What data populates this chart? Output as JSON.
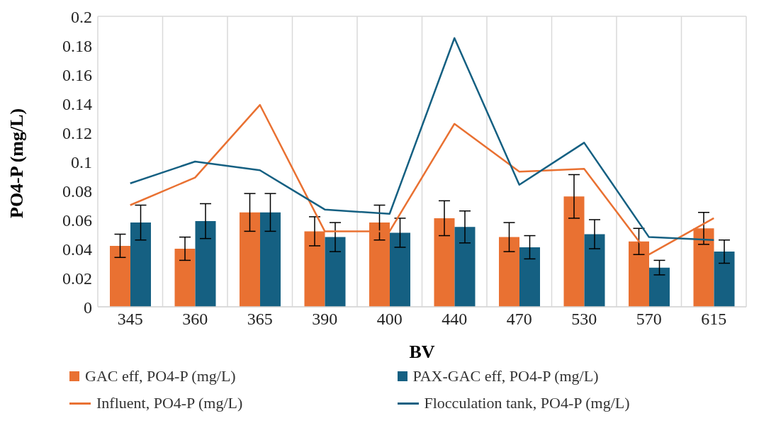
{
  "chart_data": {
    "type": "bar",
    "xlabel": "BV",
    "ylabel": "PO4-P (mg/L)",
    "categories": [
      "345",
      "360",
      "365",
      "390",
      "400",
      "440",
      "470",
      "530",
      "570",
      "615"
    ],
    "series": [
      {
        "name": "GAC eff, PO4-P (mg/L)",
        "color": "#e97132",
        "values": [
          0.042,
          0.04,
          0.065,
          0.052,
          0.058,
          0.061,
          0.048,
          0.076,
          0.045,
          0.054
        ],
        "errors": [
          0.008,
          0.008,
          0.013,
          0.01,
          0.012,
          0.012,
          0.01,
          0.015,
          0.009,
          0.011
        ]
      },
      {
        "name": "PAX-GAC eff, PO4-P (mg/L)",
        "color": "#156082",
        "values": [
          0.058,
          0.059,
          0.065,
          0.048,
          0.051,
          0.055,
          0.041,
          0.05,
          0.027,
          0.038
        ],
        "errors": [
          0.012,
          0.012,
          0.013,
          0.01,
          0.01,
          0.011,
          0.008,
          0.01,
          0.005,
          0.008
        ]
      },
      {
        "name": "Influent, PO4-P (mg/L)",
        "type": "line",
        "color": "#e97132",
        "values": [
          0.07,
          0.089,
          0.139,
          0.052,
          0.052,
          0.126,
          0.093,
          0.095,
          0.036,
          0.061
        ]
      },
      {
        "name": "Flocculation tank, PO4-P (mg/L)",
        "type": "line",
        "color": "#156082",
        "values": [
          0.085,
          0.1,
          0.094,
          0.067,
          0.064,
          0.185,
          0.084,
          0.113,
          0.048,
          0.046
        ]
      }
    ],
    "ylim": [
      0,
      0.2
    ],
    "yticks": [
      0,
      0.02,
      0.04,
      0.06,
      0.08,
      0.1,
      0.12,
      0.14,
      0.16,
      0.18,
      0.2
    ],
    "grid": true,
    "legend": "bottom",
    "marker": "none",
    "line_style": "solid"
  }
}
